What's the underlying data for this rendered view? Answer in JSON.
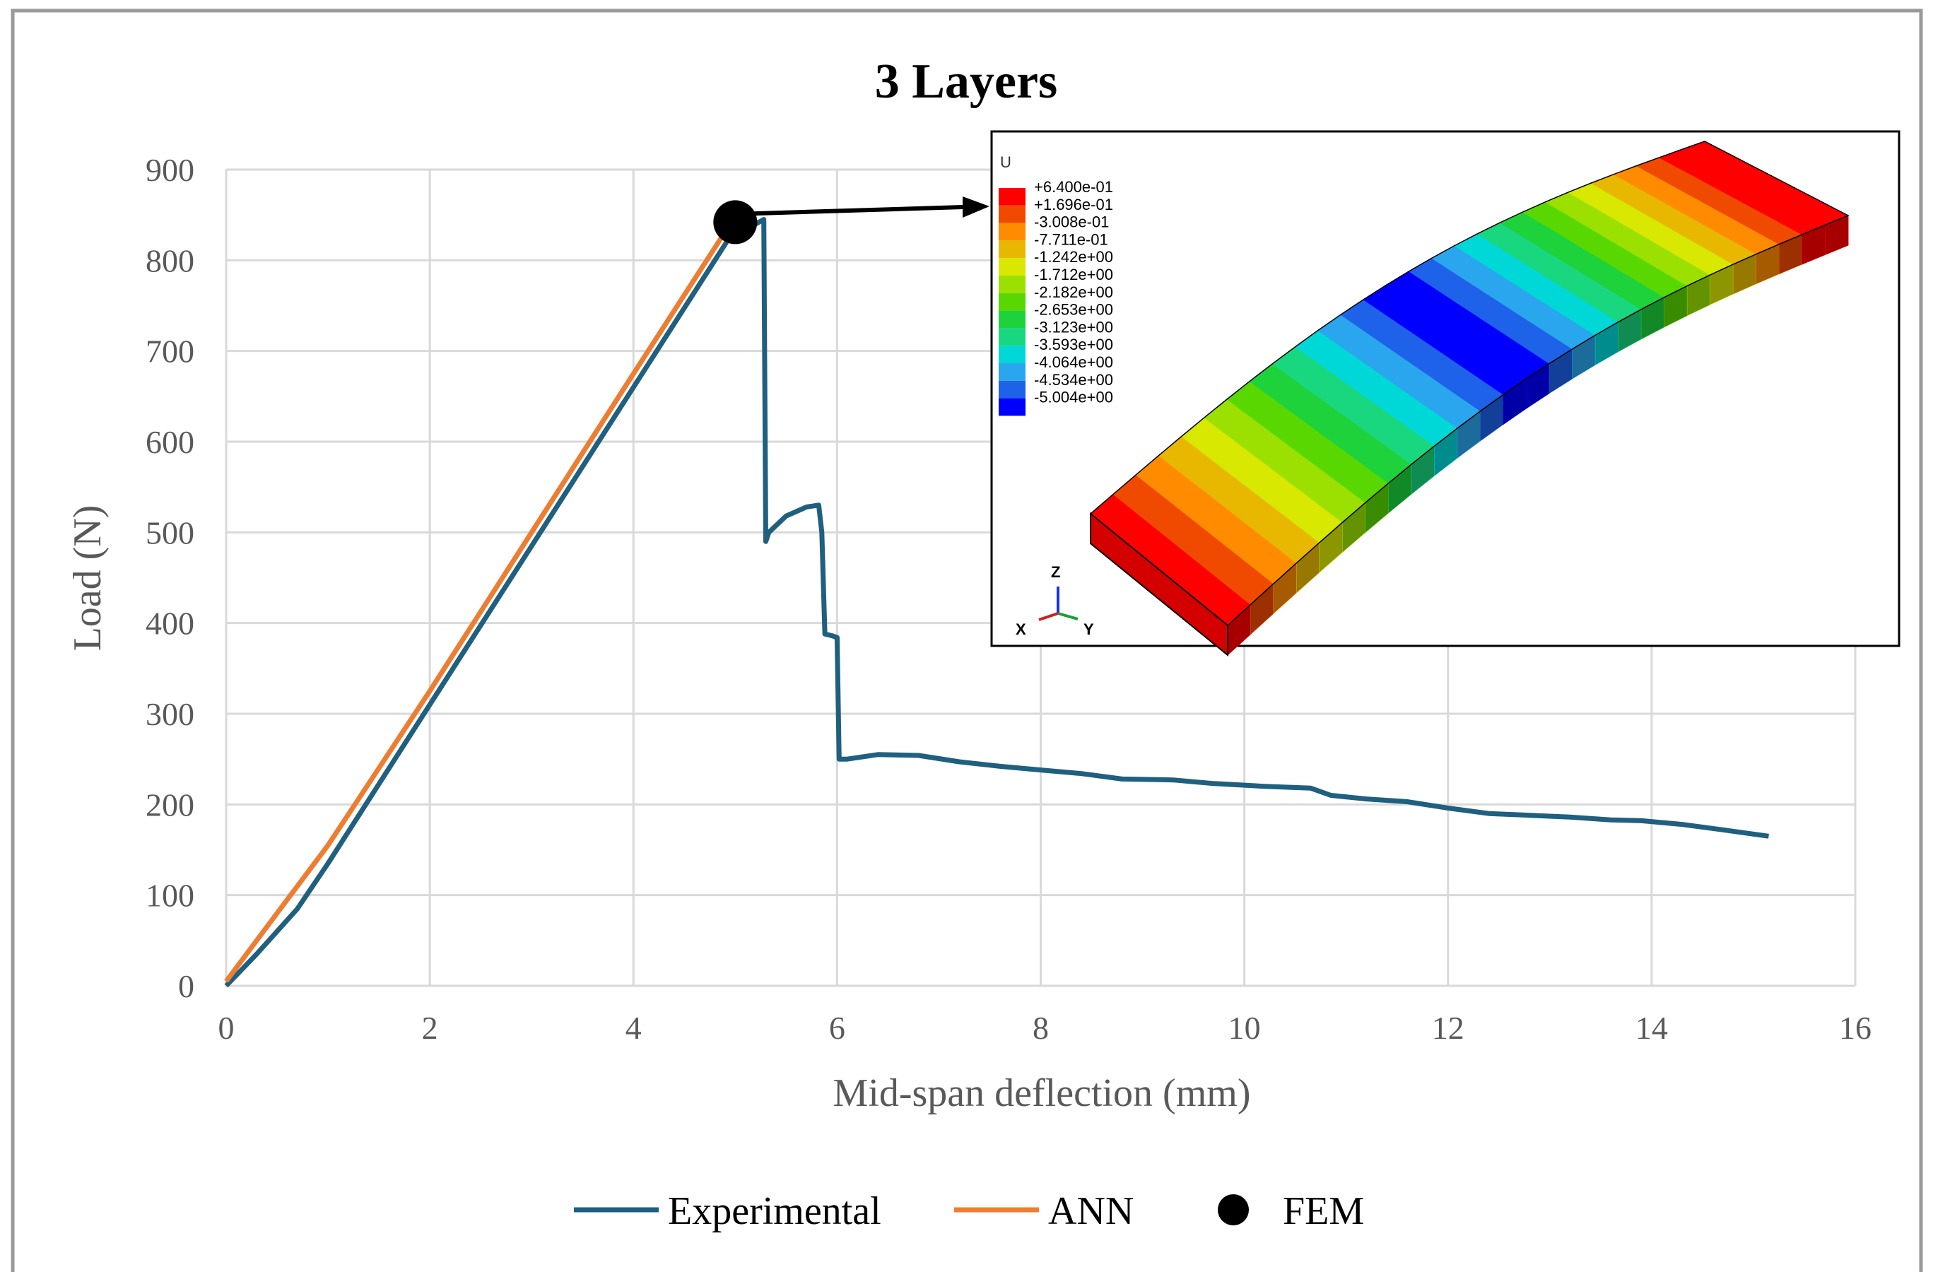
{
  "chart_data": {
    "type": "line",
    "title": "3 Layers",
    "xlabel": "Mid-span deflection (mm)",
    "ylabel": "Load (N)",
    "xlim": [
      0,
      16
    ],
    "ylim": [
      0,
      900
    ],
    "xticks": [
      0,
      2,
      4,
      6,
      8,
      10,
      12,
      14,
      16
    ],
    "yticks": [
      0,
      100,
      200,
      300,
      400,
      500,
      600,
      700,
      800,
      900
    ],
    "grid": true,
    "legend_position": "bottom",
    "series": [
      {
        "name": "Experimental",
        "color": "#1f5f7f",
        "points": [
          [
            0,
            0
          ],
          [
            0.3,
            35
          ],
          [
            0.7,
            85
          ],
          [
            1.0,
            135
          ],
          [
            2.0,
            310
          ],
          [
            3.0,
            485
          ],
          [
            4.0,
            660
          ],
          [
            5.0,
            835
          ],
          [
            5.2,
            840
          ],
          [
            5.28,
            845
          ],
          [
            5.3,
            490
          ],
          [
            5.33,
            500
          ],
          [
            5.5,
            518
          ],
          [
            5.7,
            528
          ],
          [
            5.82,
            530
          ],
          [
            5.85,
            500
          ],
          [
            5.88,
            388
          ],
          [
            5.95,
            386
          ],
          [
            6.0,
            384
          ],
          [
            6.02,
            250
          ],
          [
            6.1,
            250
          ],
          [
            6.4,
            255
          ],
          [
            6.8,
            254
          ],
          [
            7.2,
            247
          ],
          [
            7.6,
            242
          ],
          [
            8.0,
            238
          ],
          [
            8.4,
            234
          ],
          [
            8.8,
            228
          ],
          [
            9.3,
            227
          ],
          [
            9.7,
            223
          ],
          [
            10.2,
            220
          ],
          [
            10.65,
            218
          ],
          [
            10.85,
            210
          ],
          [
            11.2,
            206
          ],
          [
            11.6,
            203
          ],
          [
            12.0,
            196
          ],
          [
            12.4,
            190
          ],
          [
            12.8,
            188
          ],
          [
            13.2,
            186
          ],
          [
            13.6,
            183
          ],
          [
            13.9,
            182
          ],
          [
            14.3,
            178
          ],
          [
            14.7,
            172
          ],
          [
            15.15,
            165
          ]
        ]
      },
      {
        "name": "ANN",
        "color": "#ed7d31",
        "points": [
          [
            0,
            5
          ],
          [
            0.5,
            80
          ],
          [
            1,
            155
          ],
          [
            2,
            325
          ],
          [
            3,
            500
          ],
          [
            4,
            675
          ],
          [
            4.95,
            840
          ]
        ]
      },
      {
        "name": "FEM",
        "color": "#000000",
        "points": [
          [
            5.0,
            842
          ]
        ]
      }
    ],
    "annotation": "Arrow from FEM point to FE contour plot inset"
  },
  "inset": {
    "variable": "U",
    "legend_values": [
      "+6.400e-01",
      "+1.696e-01",
      "-3.008e-01",
      "-7.711e-01",
      "-1.242e+00",
      "-1.712e+00",
      "-2.182e+00",
      "-2.653e+00",
      "-3.123e+00",
      "-3.593e+00",
      "-4.064e+00",
      "-4.534e+00",
      "-5.004e+00"
    ],
    "legend_colors": [
      "#ff0000",
      "#f04a00",
      "#ff8c00",
      "#e8b800",
      "#d8e800",
      "#9be000",
      "#58d800",
      "#1ed23c",
      "#19d77e",
      "#00d8d8",
      "#2aa6ee",
      "#1d62e8",
      "#0000ff"
    ],
    "axes": {
      "x": "X",
      "y": "Y",
      "z": "Z"
    }
  }
}
